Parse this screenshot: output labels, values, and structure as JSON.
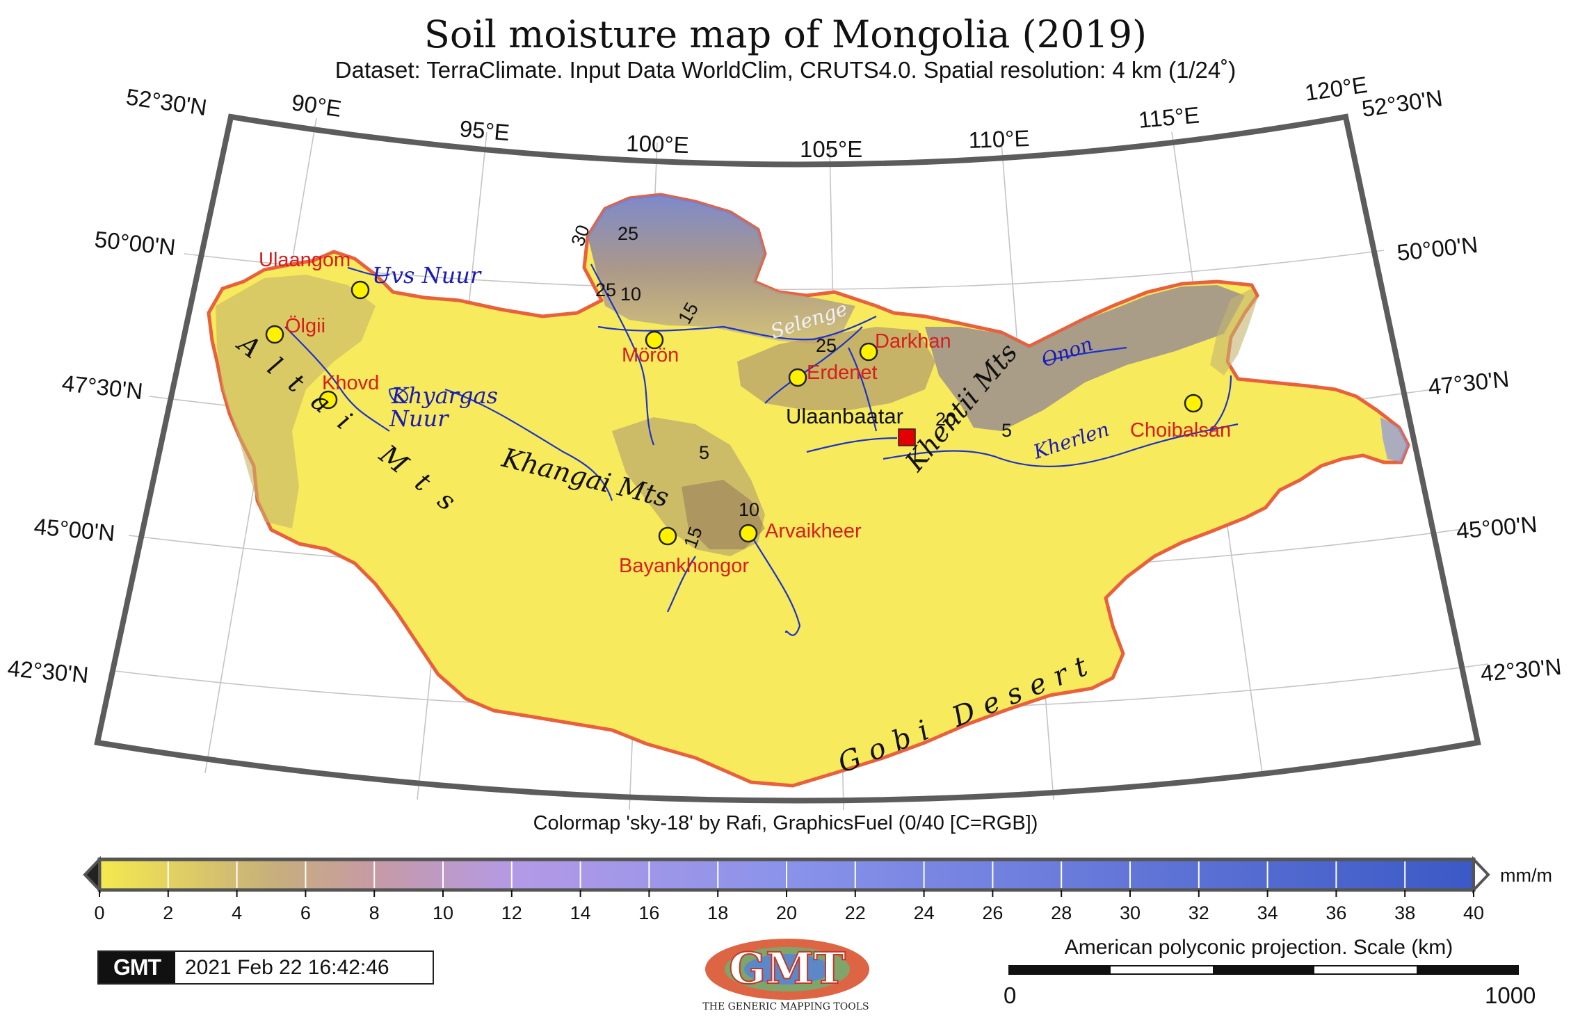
{
  "title": "Soil moisture map of Mongolia (2019)",
  "subtitle": "Dataset: TerraClimate. Input Data WorldClim, CRUTS4.0. Spatial resolution: 4 km (1/24˚)",
  "longitude_labels": [
    "90°E",
    "95°E",
    "100°E",
    "105°E",
    "110°E",
    "115°E",
    "120°E"
  ],
  "latitude_labels": [
    "52°30'N",
    "50°00'N",
    "47°30'N",
    "45°00'N",
    "42°30'N"
  ],
  "cities": [
    "Ulaangom",
    "Ölgii",
    "Khovd",
    "Mörön",
    "Erdenet",
    "Darkhan",
    "Bayankhongor",
    "Arvaikheer",
    "Choibalsan"
  ],
  "capital": "Ulaanbaatar",
  "lakes": [
    "Uvs Nuur",
    "Khyargas",
    "Nuur"
  ],
  "rivers": [
    "Selenge",
    "Onon",
    "Kherlen"
  ],
  "mountains": [
    "Altai Mts",
    "Khangai Mts",
    "Khentii Mts"
  ],
  "desert": "Gobi Desert",
  "contour_labels": [
    "5",
    "10",
    "15",
    "20",
    "25",
    "30"
  ],
  "colormap_credit": "Colormap 'sky-18' by Rafi, GraphicsFuel (0/40 [C=RGB])",
  "colorbar": {
    "unit": "mm/m",
    "ticks": [
      "0",
      "2",
      "4",
      "6",
      "8",
      "10",
      "12",
      "14",
      "16",
      "18",
      "20",
      "22",
      "24",
      "26",
      "28",
      "30",
      "32",
      "34",
      "36",
      "38",
      "40"
    ],
    "range": [
      0,
      40
    ],
    "colors": {
      "c0": "#f5e94f",
      "c5": "#c7b07b",
      "c8": "#c79aa5",
      "c12": "#b49ae6",
      "c20": "#8a93ea",
      "c40": "#3b59c5"
    }
  },
  "timestamp": "2021 Feb 22 16:42:46",
  "gmt_badge": "GMT",
  "projection": "American polyconic projection. Scale (km)",
  "scalebar": {
    "min_label": "0",
    "max_label": "1000"
  },
  "gmt_logo_tagline": "THE GENERIC MAPPING TOOLS",
  "gmt_logo_text": "GMT",
  "colors": {
    "land": "#f7ea5c",
    "border": "#e8603c",
    "river": "#1d33c8",
    "city_text": "#d81d1d",
    "capital_marker": "#e30000"
  }
}
